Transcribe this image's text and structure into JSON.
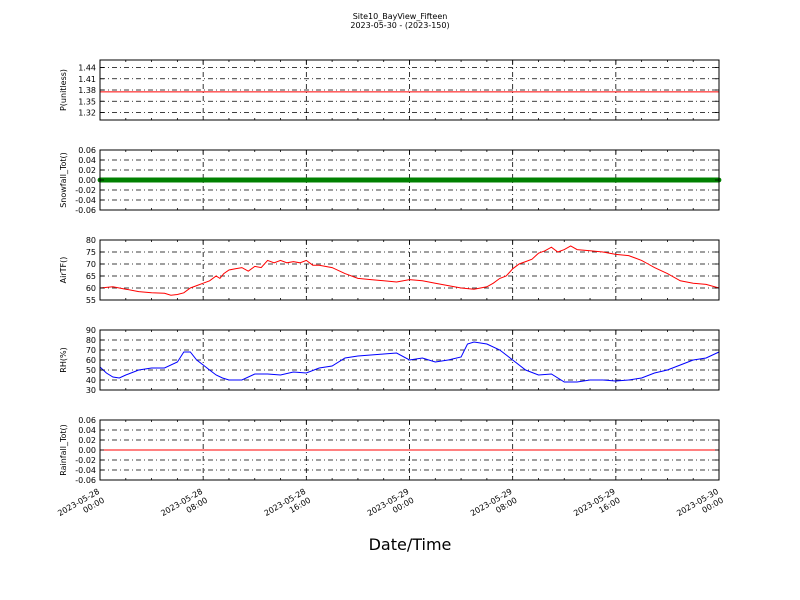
{
  "title": {
    "line1": "Site10_BayView_Fifteen",
    "line2": "2023-05-30 - (2023-150)"
  },
  "xlabel": "Date/Time",
  "x_ticks": [
    {
      "t": 0,
      "line1": "2023-05-28",
      "line2": "00:00"
    },
    {
      "t": 8,
      "line1": "2023-05-28",
      "line2": "08:00"
    },
    {
      "t": 16,
      "line1": "2023-05-28",
      "line2": "16:00"
    },
    {
      "t": 24,
      "line1": "2023-05-29",
      "line2": "00:00"
    },
    {
      "t": 32,
      "line1": "2023-05-29",
      "line2": "08:00"
    },
    {
      "t": 40,
      "line1": "2023-05-29",
      "line2": "16:00"
    },
    {
      "t": 48,
      "line1": "2023-05-30",
      "line2": "00:00"
    }
  ],
  "chart_data": [
    {
      "type": "line",
      "ylabel": "P(unitless)",
      "color": "#ff0000",
      "ylim": [
        1.3,
        1.46
      ],
      "yticks": [
        "1.32",
        "1.35",
        "1.38",
        "1.41",
        "1.44"
      ],
      "grid": true,
      "series": [
        {
          "x": [
            0,
            48
          ],
          "y": [
            1.375,
            1.375
          ]
        }
      ]
    },
    {
      "type": "line",
      "ylabel": "Snowfall_Tot()",
      "color": "#008000",
      "ylim": [
        -0.06,
        0.06
      ],
      "yticks": [
        "-0.06",
        "-0.04",
        "-0.02",
        "0.00",
        "0.02",
        "0.04",
        "0.06"
      ],
      "grid": true,
      "markers": true,
      "series": [
        {
          "x": [
            0,
            48
          ],
          "y": [
            0.0,
            0.0
          ]
        }
      ]
    },
    {
      "type": "line",
      "ylabel": "AirTF()",
      "color": "#ff0000",
      "ylim": [
        55,
        80
      ],
      "yticks": [
        "55",
        "60",
        "65",
        "70",
        "75",
        "80"
      ],
      "grid": true,
      "series": [
        {
          "x": [
            0,
            1,
            2,
            3,
            4,
            5,
            5.5,
            6,
            6.5,
            7,
            7.5,
            8,
            8.5,
            9,
            9.3,
            9.6,
            10,
            10.5,
            11,
            11.5,
            12,
            12.5,
            13,
            13.5,
            14,
            14.5,
            15,
            15.5,
            16,
            16.5,
            17,
            18,
            19,
            20,
            21,
            22,
            23,
            24,
            25,
            26,
            27,
            28,
            29,
            30,
            30.5,
            31,
            31.5,
            32,
            32.5,
            33,
            33.5,
            34,
            34.5,
            35,
            35.5,
            36,
            36.5,
            37,
            38,
            39,
            40,
            41,
            42,
            42.5,
            43,
            44,
            45,
            46,
            47,
            48
          ],
          "y": [
            60,
            60.5,
            59.5,
            58.5,
            58,
            57.8,
            57,
            57.3,
            58,
            60,
            61,
            62,
            63,
            65,
            64,
            66,
            67.5,
            68,
            68.5,
            67,
            69,
            68.5,
            71.5,
            70.5,
            71.5,
            70.5,
            71,
            70.5,
            71.5,
            69.5,
            69.5,
            68.5,
            66,
            64,
            63.5,
            63,
            62.5,
            63.5,
            63,
            62,
            61,
            60,
            59.5,
            60.5,
            62,
            64,
            65,
            68,
            70,
            71,
            72,
            74.5,
            75.5,
            77,
            75,
            76,
            77.5,
            76,
            75.5,
            75,
            74,
            73.5,
            71.5,
            70,
            68.5,
            66,
            63,
            62,
            61.5,
            60
          ]
        }
      ]
    },
    {
      "type": "line",
      "ylabel": "RH(%)",
      "color": "#0000ff",
      "ylim": [
        30,
        90
      ],
      "yticks": [
        "30",
        "40",
        "50",
        "60",
        "70",
        "80",
        "90"
      ],
      "grid": true,
      "series": [
        {
          "x": [
            0,
            0.5,
            1,
            1.5,
            2,
            3,
            4,
            5,
            6,
            6.5,
            7,
            7.5,
            8,
            8.5,
            9,
            9.5,
            10,
            11,
            12,
            13,
            14,
            15,
            16,
            17,
            18,
            19,
            20,
            21,
            22,
            23,
            24,
            25,
            26,
            27,
            28,
            28.5,
            29,
            30,
            31,
            32,
            33,
            34,
            35,
            36,
            37,
            38,
            39,
            40,
            41,
            42,
            43,
            44,
            45,
            46,
            47,
            48
          ],
          "y": [
            53,
            47,
            43,
            42,
            45,
            50,
            52,
            52,
            58,
            68,
            68,
            60,
            55,
            50,
            45,
            42,
            40,
            40,
            46,
            46,
            45,
            48,
            47,
            52,
            54,
            62,
            64,
            65,
            66,
            67,
            60,
            62,
            58,
            60,
            63,
            76,
            78,
            76,
            70,
            60,
            50,
            45,
            46,
            38,
            38,
            40,
            40,
            39,
            40,
            42,
            47,
            50,
            55,
            60,
            62,
            68
          ]
        }
      ]
    },
    {
      "type": "line",
      "ylabel": "Rainfall_Tot()",
      "color": "#ff0000",
      "ylim": [
        -0.06,
        0.06
      ],
      "yticks": [
        "-0.06",
        "-0.04",
        "-0.02",
        "0.00",
        "0.02",
        "0.04",
        "0.06"
      ],
      "grid": true,
      "series": [
        {
          "x": [
            0,
            48
          ],
          "y": [
            0.0,
            0.0
          ]
        }
      ]
    }
  ]
}
